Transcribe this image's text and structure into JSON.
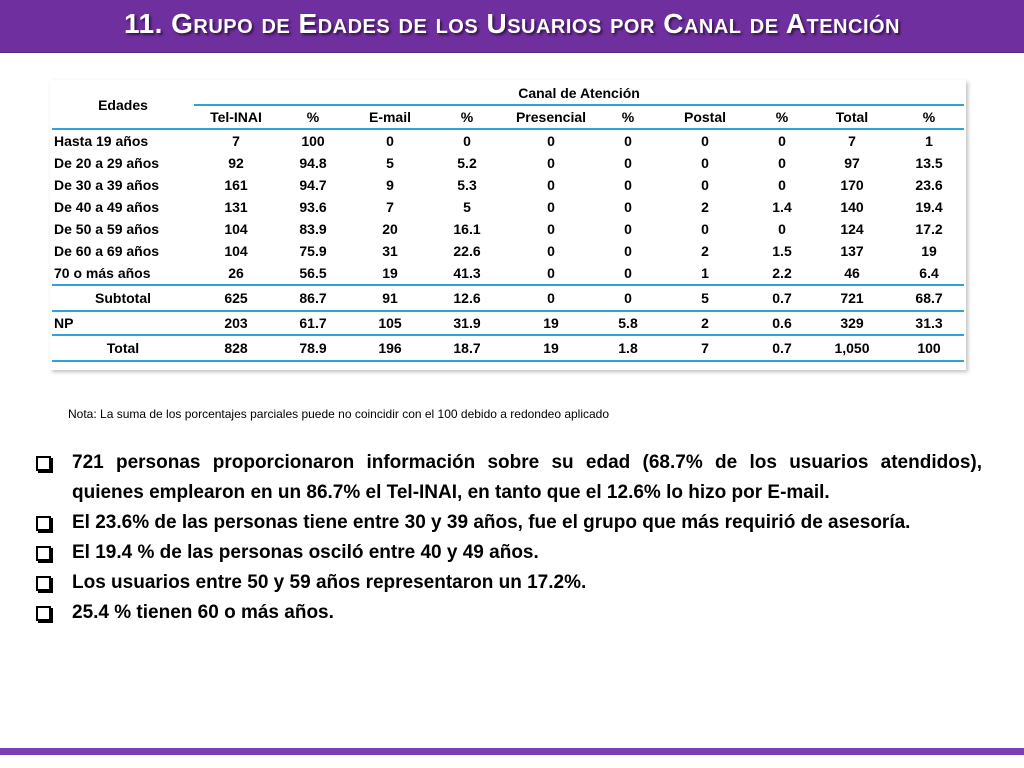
{
  "title": "11. Grupo de  Edades de los Usuarios por Canal de Atención",
  "table": {
    "edades_header": "Edades",
    "canal_header": "Canal de Atención",
    "columns": [
      "Tel-INAI",
      "%",
      "E-mail",
      "%",
      "Presencial",
      "%",
      "Postal",
      "%",
      "Total",
      "%"
    ],
    "rows": [
      {
        "label": "Hasta 19 años",
        "values": [
          "7",
          "100",
          "0",
          "0",
          "0",
          "0",
          "0",
          "0",
          "7",
          "1"
        ]
      },
      {
        "label": "De 20 a 29 años",
        "values": [
          "92",
          "94.8",
          "5",
          "5.2",
          "0",
          "0",
          "0",
          "0",
          "97",
          "13.5"
        ]
      },
      {
        "label": "De 30 a 39 años",
        "values": [
          "161",
          "94.7",
          "9",
          "5.3",
          "0",
          "0",
          "0",
          "0",
          "170",
          "23.6"
        ]
      },
      {
        "label": "De 40 a 49 años",
        "values": [
          "131",
          "93.6",
          "7",
          "5",
          "0",
          "0",
          "2",
          "1.4",
          "140",
          "19.4"
        ]
      },
      {
        "label": "De 50 a 59 años",
        "values": [
          "104",
          "83.9",
          "20",
          "16.1",
          "0",
          "0",
          "0",
          "0",
          "124",
          "17.2"
        ]
      },
      {
        "label": "De 60 a 69 años",
        "values": [
          "104",
          "75.9",
          "31",
          "22.6",
          "0",
          "0",
          "2",
          "1.5",
          "137",
          "19"
        ]
      },
      {
        "label": "70 o más años",
        "values": [
          "26",
          "56.5",
          "19",
          "41.3",
          "0",
          "0",
          "1",
          "2.2",
          "46",
          "6.4"
        ]
      }
    ],
    "subtotal": {
      "label": "Subtotal",
      "values": [
        "625",
        "86.7",
        "91",
        "12.6",
        "0",
        "0",
        "5",
        "0.7",
        "721",
        "68.7"
      ]
    },
    "np": {
      "label": "NP",
      "values": [
        "203",
        "61.7",
        "105",
        "31.9",
        "19",
        "5.8",
        "2",
        "0.6",
        "329",
        "31.3"
      ]
    },
    "total": {
      "label": "Total",
      "values": [
        "828",
        "78.9",
        "196",
        "18.7",
        "19",
        "1.8",
        "7",
        "0.7",
        "1,050",
        "100"
      ]
    }
  },
  "note": "Nota: La suma de los porcentajes parciales puede no coincidir con el 100 debido a redondeo aplicado",
  "bullets": [
    "721 personas proporcionaron información sobre su edad (68.7% de los usuarios atendidos), quienes emplearon en un 86.7% el Tel-INAI, en tanto que el 12.6% lo hizo por E-mail.",
    "El 23.6% de las personas tiene entre 30 y 39 años, fue el grupo que más requirió de asesoría.",
    "El 19.4 % de las personas osciló entre 40 y 49 años.",
    "Los usuarios entre 50 y 59 años representaron un 17.2%.",
    "25.4 % tienen 60 o más años."
  ],
  "colors": {
    "title_bar": "#6f2f9f",
    "table_rule": "#2ea3d8",
    "bottom_bar": "#7b3fb3"
  }
}
